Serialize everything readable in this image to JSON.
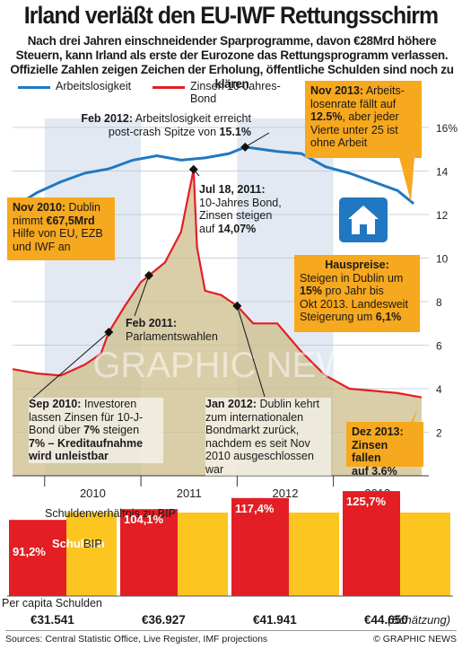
{
  "headline": "Irland verläßt den EU-IWF Rettungsschirm",
  "subhead": "Nach drei Jahren einschneidender Sparprogramme, davon €28Mrd höhere Steuern, kann Irland als erste der Eurozone das Rettungsprogramm verlassen. Offizielle Zahlen zeigen Zeichen der Erholung, öffentliche Schulden sind noch zu klären",
  "legend": {
    "unemployment": "Arbeitslosigkeit",
    "bond_line1": "Zinsen 10-Jahres-",
    "bond_line2": "Bond"
  },
  "colors": {
    "unemployment": "#1f78c1",
    "bond": "#e31e24",
    "callout": "#f6a81e",
    "bond_area": "#cdbd8b",
    "band": "#e3e9f3",
    "debt_bar": "#e31e24",
    "gdp_bar": "#fcc520"
  },
  "watermark": "GRAPHIC NEWS",
  "callouts": {
    "feb2012_a": "Feb 2012:",
    "feb2012_b": " Arbeitslosigkeit erreicht",
    "feb2012_c": "post-crash Spitze von ",
    "feb2012_d": "15.1%",
    "nov2013_a": "Nov 2013:",
    "nov2013_b": " Arbeits-",
    "nov2013_c": "losenrate fällt auf",
    "nov2013_d": "12.5%",
    "nov2013_e": ", aber jeder",
    "nov2013_f": "Vierte unter 25 ist",
    "nov2013_g": "ohne Arbeit",
    "nov2010_a": "Nov 2010:",
    "nov2010_b": " Dublin",
    "nov2010_c": "nimmt ",
    "nov2010_d": "€67,5Mrd",
    "nov2010_e": "Hilfe von EU, EZB",
    "nov2010_f": "und IWF an",
    "jul2011_a": "Jul 18, 2011:",
    "jul2011_b": "10-Jahres Bond,",
    "jul2011_c": "Zinsen steigen",
    "jul2011_d": "auf ",
    "jul2011_e": "14,07%",
    "haus_a": "Hauspreise:",
    "haus_b": "Steigen in Dublin um",
    "haus_c": "15%",
    "haus_d": " pro Jahr bis",
    "haus_e": "Okt 2013. Landesweit",
    "haus_f": "Steigerung um ",
    "haus_g": "6,1%",
    "feb2011_a": "Feb 2011:",
    "feb2011_b": "Parlamentswahlen",
    "sep2010_a": "Sep 2010:",
    "sep2010_b": " Investoren",
    "sep2010_c": "lassen Zinsen für 10-J-",
    "sep2010_d": "Bond über ",
    "sep2010_e": "7%",
    "sep2010_f": " steigen",
    "sep2010_g": "7% – Kreditaufnahme",
    "sep2010_h": "wird unleistbar",
    "jan2012_a": "Jan 2012:",
    "jan2012_b": " Dublin kehrt",
    "jan2012_c": "zum internationalen",
    "jan2012_d": "Bondmarkt zurück,",
    "jan2012_e": "nachdem es seit Nov",
    "jan2012_f": "2010 ausgeschlossen",
    "jan2012_g": "war",
    "dez2013_a": "Dez 2013:",
    "dez2013_b": "Zinsen fallen",
    "dez2013_c": "auf 3.6%"
  },
  "debt": {
    "title": "Schuldenverhältnis zu BIP",
    "debt_label": "Schulden",
    "gdp_label": "BIP",
    "per_capita_label_1": "Per capita Schulden",
    "estimate_note": "(Schätzung)"
  },
  "footer": {
    "sources": "Sources: Central Statistic Office, Live Register, IMF projections",
    "credit": "© GRAPHIC NEWS"
  },
  "chart_data": [
    {
      "type": "line",
      "x_axis": {
        "tick_labels": [
          "2010",
          "2011",
          "2012",
          "2013"
        ],
        "range": [
          "2009-09",
          "2013-12"
        ]
      },
      "y_axis": {
        "range": [
          0,
          16
        ],
        "ticks": [
          2,
          4,
          6,
          8,
          10,
          12,
          14,
          16
        ],
        "top_tick_label": "16%",
        "side": "right"
      },
      "series": [
        {
          "name": "Arbeitslosigkeit",
          "x": [
            "2009-09",
            "2009-12",
            "2010-03",
            "2010-06",
            "2010-09",
            "2010-12",
            "2011-03",
            "2011-06",
            "2011-09",
            "2011-12",
            "2012-02",
            "2012-06",
            "2012-09",
            "2012-12",
            "2013-03",
            "2013-06",
            "2013-09",
            "2013-11"
          ],
          "values": [
            12.3,
            13.0,
            13.5,
            13.9,
            14.1,
            14.5,
            14.7,
            14.5,
            14.6,
            14.8,
            15.1,
            14.9,
            14.8,
            14.2,
            13.9,
            13.5,
            13.1,
            12.5
          ]
        },
        {
          "name": "Zinsen 10-Jahres-Bond",
          "x": [
            "2009-09",
            "2009-12",
            "2010-03",
            "2010-06",
            "2010-08",
            "2010-09",
            "2010-11",
            "2011-01",
            "2011-02",
            "2011-04",
            "2011-06",
            "2011-07-18",
            "2011-08",
            "2011-09",
            "2011-11",
            "2012-01",
            "2012-03",
            "2012-06",
            "2012-09",
            "2012-12",
            "2013-03",
            "2013-06",
            "2013-09",
            "2013-12"
          ],
          "values": [
            4.9,
            4.7,
            4.6,
            5.1,
            5.6,
            6.6,
            7.8,
            8.9,
            9.2,
            9.8,
            11.2,
            14.07,
            10.5,
            8.5,
            8.3,
            7.8,
            7.0,
            7.0,
            5.7,
            4.6,
            4.0,
            3.9,
            3.8,
            3.6
          ]
        }
      ]
    },
    {
      "type": "bar",
      "title": "Schuldenverhältnis zu BIP",
      "categories": [
        "2010",
        "2011",
        "2012",
        "2013"
      ],
      "series": [
        {
          "name": "Schulden",
          "values": [
            91.2,
            104.1,
            117.4,
            125.7
          ],
          "value_labels": [
            "91,2%",
            "104,1%",
            "117,4%",
            "125,7%"
          ]
        },
        {
          "name": "BIP",
          "values": [
            100,
            100,
            100,
            100
          ]
        }
      ],
      "per_capita_debt": [
        "€31.541",
        "€36.927",
        "€41.941",
        "€44.650"
      ]
    }
  ]
}
